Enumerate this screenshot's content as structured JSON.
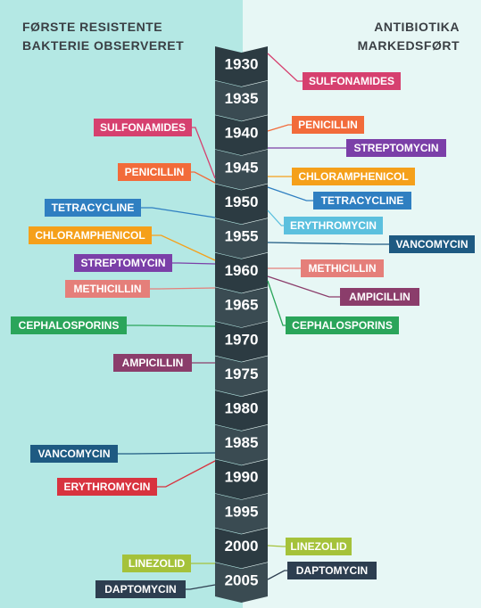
{
  "header": {
    "left": [
      "FØRSTE RESISTENTE",
      "BAKTERIE OBSERVERET"
    ],
    "right": [
      "ANTIBIOTIKA",
      "MARKEDSFØRT"
    ]
  },
  "years": [
    "1930",
    "1935",
    "1940",
    "1945",
    "1950",
    "1955",
    "1960",
    "1965",
    "1970",
    "1975",
    "1980",
    "1985",
    "1990",
    "1995",
    "2000",
    "2005"
  ],
  "resistance": [
    {
      "label": "SULFONAMIDES",
      "color": "#d6406f"
    },
    {
      "label": "PENICILLIN",
      "color": "#f26b3a"
    },
    {
      "label": "TETRACYCLINE",
      "color": "#2f7fc1"
    },
    {
      "label": "CHLORAMPHENICOL",
      "color": "#f5a01a"
    },
    {
      "label": "STREPTOMYCIN",
      "color": "#7b3fa8"
    },
    {
      "label": "METHICILLIN",
      "color": "#e57f7a"
    },
    {
      "label": "CEPHALOSPORINS",
      "color": "#2aa55a"
    },
    {
      "label": "AMPICILLIN",
      "color": "#8b3d6b"
    },
    {
      "label": "VANCOMYCIN",
      "color": "#1e5a82"
    },
    {
      "label": "ERYTHROMYCIN",
      "color": "#d8333f"
    },
    {
      "label": "LINEZOLID",
      "color": "#a5c23a"
    },
    {
      "label": "DAPTOMYCIN",
      "color": "#2d3e50"
    }
  ],
  "marketed": [
    {
      "label": "SULFONAMIDES",
      "color": "#d6406f"
    },
    {
      "label": "PENICILLIN",
      "color": "#f26b3a"
    },
    {
      "label": "STREPTOMYCIN",
      "color": "#7b3fa8"
    },
    {
      "label": "CHLORAMPHENICOL",
      "color": "#f5a01a"
    },
    {
      "label": "TETRACYCLINE",
      "color": "#2f7fc1"
    },
    {
      "label": "ERYTHROMYCIN",
      "color": "#5bc0de"
    },
    {
      "label": "VANCOMYCIN",
      "color": "#1e5a82"
    },
    {
      "label": "METHICILLIN",
      "color": "#e57f7a"
    },
    {
      "label": "AMPICILLIN",
      "color": "#8b3d6b"
    },
    {
      "label": "CEPHALOSPORINS",
      "color": "#2aa55a"
    },
    {
      "label": "LINEZOLID",
      "color": "#a5c23a"
    },
    {
      "label": "DAPTOMYCIN",
      "color": "#2d3e50"
    }
  ]
}
